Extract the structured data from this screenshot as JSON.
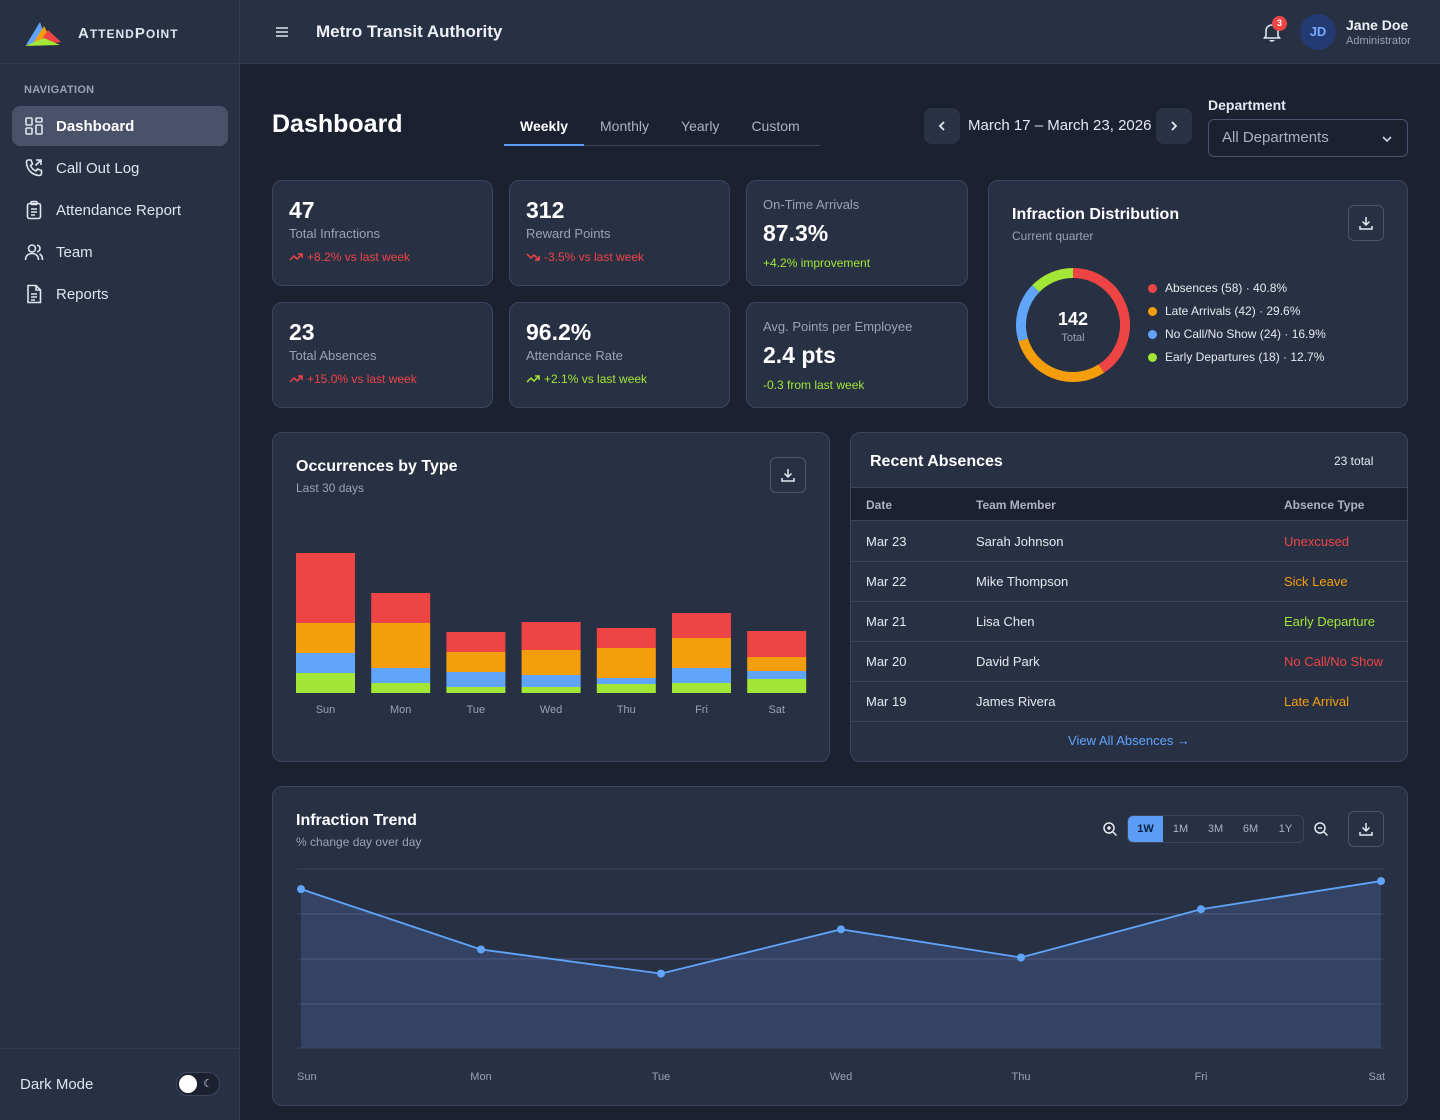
{
  "app": {
    "logo_text_first": "A",
    "logo_text_rest": "TTEND",
    "logo_text_p": "P",
    "logo_text_end": "OINT",
    "brand_colors": [
      "#ef4444",
      "#f59e0b",
      "#60a5fa",
      "#a3e635"
    ]
  },
  "sidebar": {
    "heading": "NAVIGATION",
    "items": [
      {
        "label": "Dashboard",
        "icon": "dashboard-icon",
        "active": true
      },
      {
        "label": "Call Out Log",
        "icon": "phone-icon"
      },
      {
        "label": "Attendance Report",
        "icon": "clipboard-icon"
      },
      {
        "label": "Team",
        "icon": "users-icon"
      },
      {
        "label": "Reports",
        "icon": "document-icon"
      }
    ],
    "dark_mode_label": "Dark Mode"
  },
  "header": {
    "org_name": "Metro Transit Authority",
    "notification_count": "3",
    "user_initials": "JD",
    "user_name": "Jane Doe",
    "user_role": "Administrator"
  },
  "page": {
    "title": "Dashboard",
    "tabs": [
      "Weekly",
      "Monthly",
      "Yearly",
      "Custom"
    ],
    "active_tab": "Weekly",
    "date_range": "March 17 – March 23, 2026",
    "department_label": "Department",
    "department_value": "All Departments"
  },
  "stats": [
    {
      "value": "47",
      "label": "Total Infractions",
      "delta": "+8.2% vs last week"
    },
    {
      "value": "312",
      "label": "Reward Points",
      "delta": "-3.5% vs last week"
    },
    {
      "label": "On-Time Arrivals",
      "value": "87.3%",
      "delta": "+4.2% improvement"
    },
    {
      "value": "23",
      "label": "Total Absences",
      "delta": "+15.0% vs last week"
    },
    {
      "value": "96.2%",
      "label": "Attendance Rate",
      "delta": "+2.1% vs last week"
    },
    {
      "label": "Avg. Points per Employee",
      "value": "2.4 pts",
      "delta": "-0.3 from last week"
    }
  ],
  "distribution": {
    "title": "Infraction Distribution",
    "subtitle": "Current quarter",
    "total": "142",
    "total_label": "Total",
    "legend": [
      {
        "label": "Absences (58) · 40.8%",
        "color": "#ef4444"
      },
      {
        "label": "Late Arrivals (42) · 29.6%",
        "color": "#f59e0b"
      },
      {
        "label": "No Call/No Show (24) · 16.9%",
        "color": "#60a5fa"
      },
      {
        "label": "Early Departures (18) · 12.7%",
        "color": "#a3e635"
      }
    ]
  },
  "occurrences": {
    "title": "Occurrences by Type",
    "subtitle": "Last 30 days"
  },
  "absences": {
    "title": "Recent Absences",
    "total": "23 total",
    "columns": [
      "Date",
      "Team Member",
      "Absence Type"
    ],
    "rows": [
      {
        "date": "Mar 23",
        "member": "Sarah Johnson",
        "type": "Unexcused",
        "color": "#ef4444"
      },
      {
        "date": "Mar 22",
        "member": "Mike Thompson",
        "type": "Sick Leave",
        "color": "#f59e0b"
      },
      {
        "date": "Mar 21",
        "member": "Lisa Chen",
        "type": "Early Departure",
        "color": "#a3e635"
      },
      {
        "date": "Mar 20",
        "member": "David Park",
        "type": "No Call/No Show",
        "color": "#ef4444"
      },
      {
        "date": "Mar 19",
        "member": "James Rivera",
        "type": "Late Arrival",
        "color": "#f59e0b"
      }
    ],
    "view_all": "View All Absences →"
  },
  "trend": {
    "title": "Infraction Trend",
    "subtitle": "% change day over day",
    "ranges": [
      "1W",
      "1M",
      "3M",
      "6M",
      "1Y"
    ],
    "active_range": "1W"
  },
  "chart_data": [
    {
      "type": "pie",
      "title": "Infraction Distribution",
      "categories": [
        "Absences",
        "Late Arrivals",
        "No Call/No Show",
        "Early Departures"
      ],
      "values": [
        58,
        42,
        24,
        18
      ],
      "colors": [
        "#ef4444",
        "#f59e0b",
        "#60a5fa",
        "#a3e635"
      ]
    },
    {
      "type": "bar",
      "title": "Occurrences by Type",
      "categories": [
        "Sun",
        "Mon",
        "Tue",
        "Wed",
        "Thu",
        "Fri",
        "Sat"
      ],
      "stacked": true,
      "ylim": [
        0,
        155
      ],
      "series": [
        {
          "color": "#a3e635",
          "values": [
            20,
            10,
            6,
            6,
            9,
            10,
            14
          ]
        },
        {
          "color": "#60a5fa",
          "values": [
            20,
            15,
            15,
            12,
            6,
            15,
            8
          ]
        },
        {
          "color": "#f59e0b",
          "values": [
            30,
            45,
            20,
            25,
            30,
            30,
            14
          ]
        },
        {
          "color": "#ef4444",
          "values": [
            70,
            30,
            20,
            28,
            20,
            25,
            26
          ]
        }
      ]
    },
    {
      "type": "area",
      "title": "Infraction Trend",
      "categories": [
        "Sun",
        "Mon",
        "Tue",
        "Wed",
        "Thu",
        "Fri",
        "Sat"
      ],
      "values": [
        2.7,
        1.2,
        0.6,
        1.7,
        1.0,
        2.2,
        2.9
      ],
      "ylim": [
        -1.25,
        3.2
      ],
      "grid": true,
      "color": "#60a5fa"
    }
  ]
}
